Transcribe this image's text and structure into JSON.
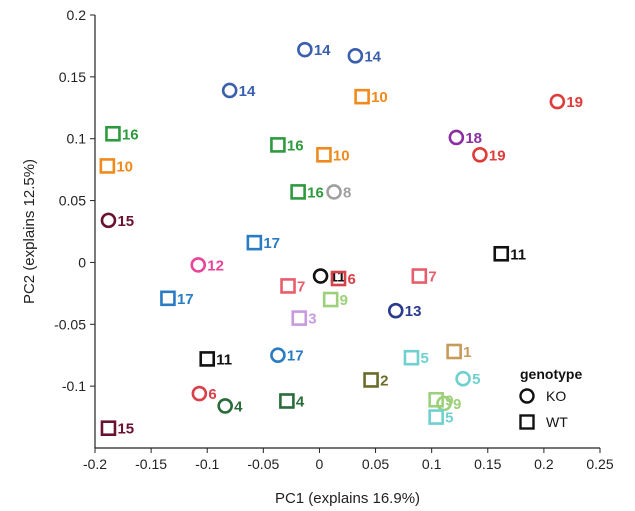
{
  "chart_data": {
    "type": "scatter",
    "xlabel": "PC1 (explains 16.9%)",
    "ylabel": "PC2 (explains 12.5%)",
    "xlim": [
      -0.2,
      0.25
    ],
    "ylim": [
      -0.15,
      0.2
    ],
    "xticks": [
      "-0.2",
      "-0.15",
      "-0.1",
      "-0.05",
      "0",
      "0.05",
      "0.1",
      "0.15",
      "0.2",
      "0.25"
    ],
    "yticks": [
      "-0.1",
      "-0.05",
      "0",
      "0.05",
      "0.1",
      "0.15",
      "0.2"
    ],
    "legend": {
      "title": "genotype",
      "position": "bottom-right",
      "entries": [
        {
          "label": "KO",
          "marker": "circle"
        },
        {
          "label": "WT",
          "marker": "square"
        }
      ]
    },
    "points": [
      {
        "x": -0.013,
        "y": 0.172,
        "label": "14",
        "marker": "circle",
        "color": "#3a5fad"
      },
      {
        "x": 0.032,
        "y": 0.167,
        "label": "14",
        "marker": "circle",
        "color": "#3a5fad"
      },
      {
        "x": -0.08,
        "y": 0.139,
        "label": "14",
        "marker": "circle",
        "color": "#3a5fad"
      },
      {
        "x": 0.038,
        "y": 0.134,
        "label": "10",
        "marker": "square",
        "color": "#f08a1c"
      },
      {
        "x": 0.212,
        "y": 0.13,
        "label": "19",
        "marker": "circle",
        "color": "#e03b3b"
      },
      {
        "x": -0.184,
        "y": 0.104,
        "label": "16",
        "marker": "square",
        "color": "#2e9a3e"
      },
      {
        "x": 0.122,
        "y": 0.101,
        "label": "18",
        "marker": "circle",
        "color": "#8a2fa0"
      },
      {
        "x": -0.037,
        "y": 0.095,
        "label": "16",
        "marker": "square",
        "color": "#2e9a3e"
      },
      {
        "x": 0.004,
        "y": 0.087,
        "label": "10",
        "marker": "square",
        "color": "#f08a1c"
      },
      {
        "x": 0.143,
        "y": 0.087,
        "label": "19",
        "marker": "circle",
        "color": "#e03b3b"
      },
      {
        "x": -0.189,
        "y": 0.078,
        "label": "10",
        "marker": "square",
        "color": "#f08a1c"
      },
      {
        "x": -0.019,
        "y": 0.057,
        "label": "16",
        "marker": "square",
        "color": "#2e9a3e"
      },
      {
        "x": 0.013,
        "y": 0.057,
        "label": "8",
        "marker": "circle",
        "color": "#a0a0a0"
      },
      {
        "x": -0.188,
        "y": 0.034,
        "label": "15",
        "marker": "circle",
        "color": "#6b1233"
      },
      {
        "x": -0.058,
        "y": 0.016,
        "label": "17",
        "marker": "square",
        "color": "#2a7bc4"
      },
      {
        "x": 0.162,
        "y": 0.007,
        "label": "11",
        "marker": "square",
        "color": "#111111"
      },
      {
        "x": -0.108,
        "y": -0.002,
        "label": "12",
        "marker": "circle",
        "color": "#e8449a"
      },
      {
        "x": 0.001,
        "y": -0.011,
        "label": "11",
        "marker": "circle",
        "color": "#111111"
      },
      {
        "x": 0.017,
        "y": -0.013,
        "label": "6",
        "marker": "square",
        "color": "#d8404a"
      },
      {
        "x": 0.089,
        "y": -0.011,
        "label": "7",
        "marker": "square",
        "color": "#e85d6a"
      },
      {
        "x": -0.028,
        "y": -0.019,
        "label": "7",
        "marker": "square",
        "color": "#e85d6a"
      },
      {
        "x": -0.135,
        "y": -0.029,
        "label": "17",
        "marker": "square",
        "color": "#2a7bc4"
      },
      {
        "x": 0.01,
        "y": -0.03,
        "label": "9",
        "marker": "square",
        "color": "#9dd07a"
      },
      {
        "x": 0.068,
        "y": -0.039,
        "label": "13",
        "marker": "circle",
        "color": "#2a3a8c"
      },
      {
        "x": -0.018,
        "y": -0.045,
        "label": "3",
        "marker": "square",
        "color": "#c79be0"
      },
      {
        "x": -0.1,
        "y": -0.078,
        "label": "11",
        "marker": "square",
        "color": "#111111"
      },
      {
        "x": -0.037,
        "y": -0.075,
        "label": "17",
        "marker": "circle",
        "color": "#2a7bc4"
      },
      {
        "x": 0.082,
        "y": -0.077,
        "label": "5",
        "marker": "square",
        "color": "#6fd0d0"
      },
      {
        "x": 0.12,
        "y": -0.072,
        "label": "1",
        "marker": "square",
        "color": "#c89a5a"
      },
      {
        "x": 0.046,
        "y": -0.095,
        "label": "2",
        "marker": "square",
        "color": "#6b6b2a"
      },
      {
        "x": 0.128,
        "y": -0.094,
        "label": "5",
        "marker": "circle",
        "color": "#6fd0d0"
      },
      {
        "x": -0.107,
        "y": -0.106,
        "label": "6",
        "marker": "circle",
        "color": "#d8404a"
      },
      {
        "x": -0.084,
        "y": -0.116,
        "label": "4",
        "marker": "circle",
        "color": "#2a6b3a"
      },
      {
        "x": -0.029,
        "y": -0.112,
        "label": "4",
        "marker": "square",
        "color": "#2a6b3a"
      },
      {
        "x": 0.104,
        "y": -0.111,
        "label": "9",
        "marker": "square",
        "color": "#9dd07a"
      },
      {
        "x": 0.111,
        "y": -0.114,
        "label": "9",
        "marker": "circle",
        "color": "#9dd07a"
      },
      {
        "x": 0.104,
        "y": -0.125,
        "label": "5",
        "marker": "square",
        "color": "#6fd0d0"
      },
      {
        "x": -0.188,
        "y": -0.134,
        "label": "15",
        "marker": "square",
        "color": "#6b1233"
      }
    ]
  }
}
